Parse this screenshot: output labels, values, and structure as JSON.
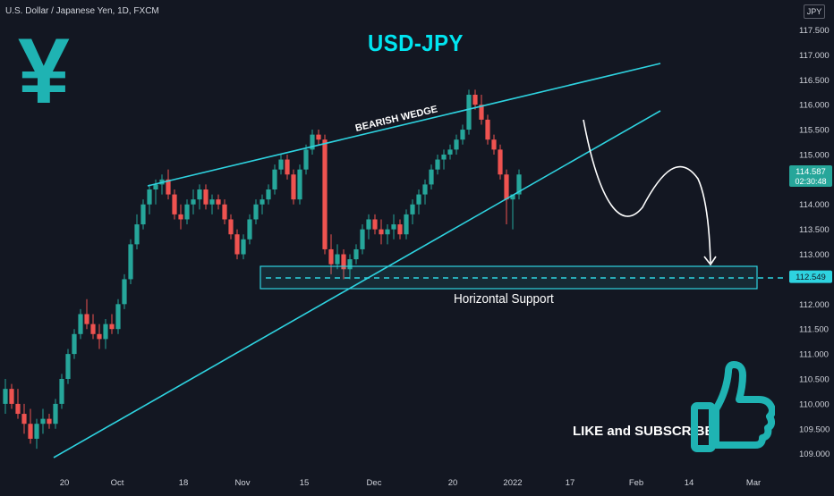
{
  "header": {
    "symbol": "U.S. Dollar / Japanese Yen, 1D, FXCM",
    "currency_badge": "JPY"
  },
  "overlay": {
    "title": "USD-JPY",
    "yen_symbol": "¥",
    "wedge_label": "BEARISH WEDGE",
    "support_label": "Horizontal Support",
    "cta": "LIKE and SUBSCRIBE"
  },
  "colors": {
    "background": "#131722",
    "up_candle": "#26a69a",
    "down_candle": "#ef5350",
    "trendline": "#2ed3e0",
    "support_box": "#2ed3e0",
    "price_badge": "#26a69a",
    "level_badge": "#2ed3e0",
    "text": "#d1d4dc",
    "title": "#00e5f0",
    "thumb_icon": "#1fb3b3"
  },
  "chart_data": {
    "type": "candlestick",
    "y_axis": {
      "min": 108.6,
      "max": 118.1,
      "ticks": [
        "117.500",
        "117.000",
        "116.500",
        "116.000",
        "115.500",
        "115.000",
        "114.500",
        "114.000",
        "113.500",
        "113.000",
        "112.500",
        "112.000",
        "111.500",
        "111.000",
        "110.500",
        "110.000",
        "109.500",
        "109.000"
      ]
    },
    "x_axis": {
      "ticks": [
        {
          "label": "20",
          "t": 72
        },
        {
          "label": "Oct",
          "t": 131
        },
        {
          "label": "18",
          "t": 205
        },
        {
          "label": "Nov",
          "t": 271
        },
        {
          "label": "15",
          "t": 340
        },
        {
          "label": "Dec",
          "t": 418
        },
        {
          "label": "20",
          "t": 506
        },
        {
          "label": "2022",
          "t": 573
        },
        {
          "label": "17",
          "t": 637
        },
        {
          "label": "Feb",
          "t": 711
        },
        {
          "label": "14",
          "t": 770
        },
        {
          "label": "Mar",
          "t": 842
        }
      ]
    },
    "last_price": "114.587",
    "countdown": "02:30:48",
    "support_level": "112.549",
    "candles": [
      {
        "o": 110.0,
        "h": 110.5,
        "l": 109.8,
        "c": 110.3
      },
      {
        "o": 110.3,
        "h": 110.4,
        "l": 109.9,
        "c": 110.0
      },
      {
        "o": 110.0,
        "h": 110.3,
        "l": 109.7,
        "c": 109.8
      },
      {
        "o": 109.8,
        "h": 110.0,
        "l": 109.4,
        "c": 109.6
      },
      {
        "o": 109.6,
        "h": 109.9,
        "l": 109.2,
        "c": 109.3
      },
      {
        "o": 109.3,
        "h": 109.7,
        "l": 109.1,
        "c": 109.6
      },
      {
        "o": 109.6,
        "h": 109.9,
        "l": 109.4,
        "c": 109.7
      },
      {
        "o": 109.7,
        "h": 109.8,
        "l": 109.5,
        "c": 109.6
      },
      {
        "o": 109.6,
        "h": 110.1,
        "l": 109.5,
        "c": 110.0
      },
      {
        "o": 110.0,
        "h": 110.6,
        "l": 109.9,
        "c": 110.5
      },
      {
        "o": 110.5,
        "h": 111.1,
        "l": 110.4,
        "c": 111.0
      },
      {
        "o": 111.0,
        "h": 111.5,
        "l": 110.9,
        "c": 111.4
      },
      {
        "o": 111.4,
        "h": 111.9,
        "l": 111.3,
        "c": 111.8
      },
      {
        "o": 111.8,
        "h": 112.1,
        "l": 111.5,
        "c": 111.6
      },
      {
        "o": 111.6,
        "h": 111.8,
        "l": 111.3,
        "c": 111.4
      },
      {
        "o": 111.4,
        "h": 111.6,
        "l": 111.1,
        "c": 111.3
      },
      {
        "o": 111.3,
        "h": 111.7,
        "l": 111.1,
        "c": 111.6
      },
      {
        "o": 111.6,
        "h": 111.8,
        "l": 111.4,
        "c": 111.5
      },
      {
        "o": 111.5,
        "h": 112.1,
        "l": 111.4,
        "c": 112.0
      },
      {
        "o": 112.0,
        "h": 112.6,
        "l": 111.9,
        "c": 112.5
      },
      {
        "o": 112.5,
        "h": 113.3,
        "l": 112.4,
        "c": 113.2
      },
      {
        "o": 113.2,
        "h": 113.8,
        "l": 113.1,
        "c": 113.6
      },
      {
        "o": 113.6,
        "h": 114.1,
        "l": 113.5,
        "c": 114.0
      },
      {
        "o": 114.0,
        "h": 114.4,
        "l": 113.8,
        "c": 114.3
      },
      {
        "o": 114.3,
        "h": 114.5,
        "l": 114.0,
        "c": 114.4
      },
      {
        "o": 114.4,
        "h": 114.6,
        "l": 114.2,
        "c": 114.5
      },
      {
        "o": 114.5,
        "h": 114.7,
        "l": 114.1,
        "c": 114.2
      },
      {
        "o": 114.2,
        "h": 114.3,
        "l": 113.7,
        "c": 113.8
      },
      {
        "o": 113.8,
        "h": 114.0,
        "l": 113.5,
        "c": 113.7
      },
      {
        "o": 113.7,
        "h": 114.1,
        "l": 113.6,
        "c": 114.0
      },
      {
        "o": 114.0,
        "h": 114.3,
        "l": 113.8,
        "c": 114.1
      },
      {
        "o": 114.1,
        "h": 114.4,
        "l": 113.9,
        "c": 114.3
      },
      {
        "o": 114.3,
        "h": 114.4,
        "l": 113.9,
        "c": 114.0
      },
      {
        "o": 114.0,
        "h": 114.2,
        "l": 113.8,
        "c": 114.1
      },
      {
        "o": 114.1,
        "h": 114.2,
        "l": 113.9,
        "c": 114.0
      },
      {
        "o": 114.0,
        "h": 114.1,
        "l": 113.6,
        "c": 113.7
      },
      {
        "o": 113.7,
        "h": 113.8,
        "l": 113.3,
        "c": 113.4
      },
      {
        "o": 113.4,
        "h": 113.5,
        "l": 112.9,
        "c": 113.0
      },
      {
        "o": 113.0,
        "h": 113.4,
        "l": 112.9,
        "c": 113.3
      },
      {
        "o": 113.3,
        "h": 113.8,
        "l": 113.2,
        "c": 113.7
      },
      {
        "o": 113.7,
        "h": 114.1,
        "l": 113.6,
        "c": 114.0
      },
      {
        "o": 114.0,
        "h": 114.2,
        "l": 113.8,
        "c": 114.1
      },
      {
        "o": 114.1,
        "h": 114.4,
        "l": 114.0,
        "c": 114.3
      },
      {
        "o": 114.3,
        "h": 114.8,
        "l": 114.2,
        "c": 114.7
      },
      {
        "o": 114.7,
        "h": 115.0,
        "l": 114.6,
        "c": 114.9
      },
      {
        "o": 114.9,
        "h": 115.0,
        "l": 114.5,
        "c": 114.6
      },
      {
        "o": 114.6,
        "h": 114.7,
        "l": 114.0,
        "c": 114.1
      },
      {
        "o": 114.1,
        "h": 114.8,
        "l": 114.0,
        "c": 114.7
      },
      {
        "o": 114.7,
        "h": 115.2,
        "l": 114.6,
        "c": 115.1
      },
      {
        "o": 115.1,
        "h": 115.5,
        "l": 115.0,
        "c": 115.4
      },
      {
        "o": 115.4,
        "h": 115.5,
        "l": 115.2,
        "c": 115.3
      },
      {
        "o": 115.3,
        "h": 115.4,
        "l": 113.0,
        "c": 113.1
      },
      {
        "o": 113.1,
        "h": 113.4,
        "l": 112.6,
        "c": 112.8
      },
      {
        "o": 112.8,
        "h": 113.2,
        "l": 112.7,
        "c": 113.0
      },
      {
        "o": 113.0,
        "h": 113.1,
        "l": 112.5,
        "c": 112.7
      },
      {
        "o": 112.7,
        "h": 113.0,
        "l": 112.5,
        "c": 112.9
      },
      {
        "o": 112.9,
        "h": 113.2,
        "l": 112.8,
        "c": 113.1
      },
      {
        "o": 113.1,
        "h": 113.6,
        "l": 113.0,
        "c": 113.5
      },
      {
        "o": 113.5,
        "h": 113.8,
        "l": 113.3,
        "c": 113.7
      },
      {
        "o": 113.7,
        "h": 113.8,
        "l": 113.4,
        "c": 113.5
      },
      {
        "o": 113.5,
        "h": 113.7,
        "l": 113.2,
        "c": 113.4
      },
      {
        "o": 113.4,
        "h": 113.6,
        "l": 113.2,
        "c": 113.5
      },
      {
        "o": 113.5,
        "h": 113.8,
        "l": 113.3,
        "c": 113.6
      },
      {
        "o": 113.6,
        "h": 113.7,
        "l": 113.3,
        "c": 113.4
      },
      {
        "o": 113.4,
        "h": 113.9,
        "l": 113.3,
        "c": 113.8
      },
      {
        "o": 113.8,
        "h": 114.1,
        "l": 113.6,
        "c": 114.0
      },
      {
        "o": 114.0,
        "h": 114.3,
        "l": 113.8,
        "c": 114.2
      },
      {
        "o": 114.2,
        "h": 114.5,
        "l": 114.0,
        "c": 114.4
      },
      {
        "o": 114.4,
        "h": 114.8,
        "l": 114.3,
        "c": 114.7
      },
      {
        "o": 114.7,
        "h": 115.0,
        "l": 114.6,
        "c": 114.9
      },
      {
        "o": 114.9,
        "h": 115.1,
        "l": 114.7,
        "c": 115.0
      },
      {
        "o": 115.0,
        "h": 115.2,
        "l": 114.9,
        "c": 115.1
      },
      {
        "o": 115.1,
        "h": 115.4,
        "l": 115.0,
        "c": 115.3
      },
      {
        "o": 115.3,
        "h": 115.6,
        "l": 115.2,
        "c": 115.5
      },
      {
        "o": 115.5,
        "h": 116.3,
        "l": 115.4,
        "c": 116.2
      },
      {
        "o": 116.2,
        "h": 116.3,
        "l": 115.9,
        "c": 116.0
      },
      {
        "o": 116.0,
        "h": 116.2,
        "l": 115.6,
        "c": 115.7
      },
      {
        "o": 115.7,
        "h": 115.8,
        "l": 115.2,
        "c": 115.3
      },
      {
        "o": 115.3,
        "h": 115.4,
        "l": 115.0,
        "c": 115.1
      },
      {
        "o": 115.1,
        "h": 115.2,
        "l": 114.5,
        "c": 114.6
      },
      {
        "o": 114.6,
        "h": 114.7,
        "l": 113.6,
        "c": 114.1
      },
      {
        "o": 114.1,
        "h": 114.2,
        "l": 113.5,
        "c": 114.2
      },
      {
        "o": 114.2,
        "h": 114.7,
        "l": 114.1,
        "c": 114.6
      }
    ]
  }
}
